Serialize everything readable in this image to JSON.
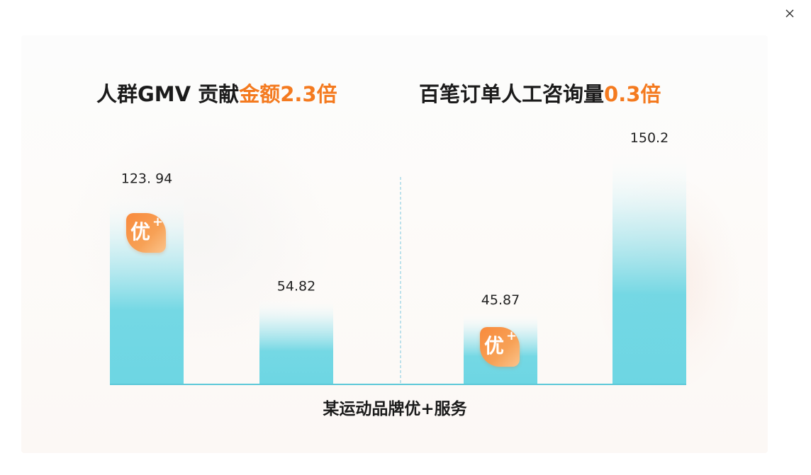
{
  "close_icon": "close-icon",
  "headline_left": {
    "prefix": "人群GMV 贡献",
    "highlight": "金额2.3倍"
  },
  "headline_right": {
    "prefix": "百笔订单人工咨询量",
    "highlight": "0.3倍"
  },
  "footer_caption": "某运动品牌优+服务",
  "badge": {
    "text": "优",
    "plus": "+"
  },
  "colors": {
    "accent": "#f47a1f",
    "bar_bottom": "#6dd6e3",
    "bar_top": "#ffffff",
    "axis": "#5cc8d8",
    "divider": "#7ec9e0"
  },
  "chart_data": [
    {
      "type": "bar",
      "title": "人群GMV 贡献金额2.3倍",
      "categories": [
        "",
        ""
      ],
      "values": [
        123.94,
        54.82
      ],
      "value_labels": [
        "123. 94",
        "54.82"
      ],
      "badge_on": [
        0
      ],
      "grid": false
    },
    {
      "type": "bar",
      "title": "百笔订单人工咨询量0.3倍",
      "categories": [
        "",
        ""
      ],
      "values": [
        45.87,
        150.2
      ],
      "value_labels": [
        "45.87",
        "150.2"
      ],
      "badge_on": [
        0
      ],
      "grid": false
    }
  ]
}
